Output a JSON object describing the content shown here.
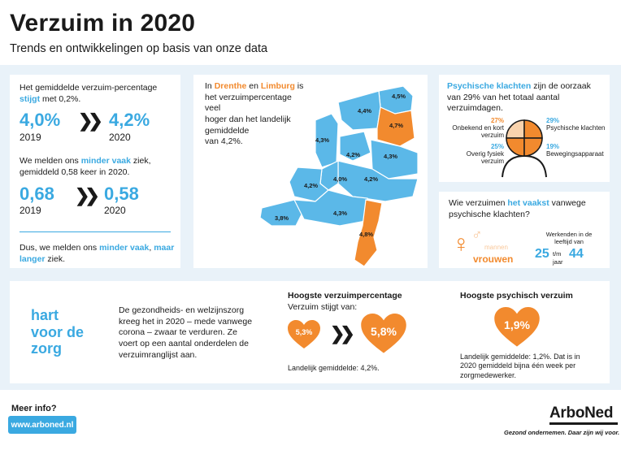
{
  "header": {
    "title": "Verzuim in 2020",
    "subtitle": "Trends en ontwikkelingen op basis van onze data"
  },
  "card_percentage": {
    "line1_a": "Het gemiddelde verzuim-percentage",
    "line2_b": "stijgt",
    "line2_c": " met 0,2%.",
    "from_value": "4,0%",
    "from_year": "2019",
    "arrow": "»",
    "to_value": "4,2%",
    "to_year": "2020",
    "freq_a": "We melden ons ",
    "freq_b": "minder vaak",
    "freq_c": " ziek,",
    "freq_d": "gemiddeld 0,58 keer in 2020.",
    "f_from_value": "0,68",
    "f_from_year": "2019",
    "f_to_value": "0,58",
    "f_to_year": "2020",
    "conclusion_a": "Dus, we melden ons ",
    "conclusion_b": "minder vaak",
    "conclusion_c": ", ",
    "conclusion_d": "maar",
    "conclusion_e": "langer",
    "conclusion_f": " ziek."
  },
  "card_map": {
    "text_a": "In ",
    "text_b": "Drenthe",
    "text_c": " en ",
    "text_d": "Limburg",
    "text_e": " is",
    "text_f": "het verzuimpercentage veel",
    "text_g": "hoger dan het landelijk",
    "text_h": "gemiddelde",
    "text_i": "van 4,2%.",
    "labels": [
      "4,5%",
      "4,4%",
      "4,7%",
      "4,3%",
      "4,2%",
      "4,3%",
      "4,0%",
      "4,2%",
      "4,2%",
      "4,3%",
      "3,8%",
      "4,8%"
    ],
    "blue": "#5bb8e8",
    "orange": "#f28a2e"
  },
  "card_psych": {
    "text_a": "Psychische klachten",
    "text_b": " zijn de oorzaak",
    "text_c": "van 29% van het totaal aantal",
    "text_d": "verzuimdagen.",
    "seg1_pct": "27%",
    "seg1_lbl_a": "Onbekend en kort",
    "seg1_lbl_b": "verzuim",
    "seg2_pct": "29%",
    "seg2_lbl": "Psychische klachten",
    "seg3_pct": "25%",
    "seg3_lbl": "Overig fysiek verzuim",
    "seg4_pct": "19%",
    "seg4_lbl": "Bewegingsapparaat"
  },
  "card_who": {
    "text_a": "Wie verzuimen ",
    "text_b": "het vaakst",
    "text_c": " vanwege",
    "text_d": "psychische klachten?",
    "male": "mannen",
    "female": "vrouwen",
    "age_a": "Werkenden in de",
    "age_b": "leeftijd van",
    "age_from": "25",
    "age_tm": "t/m",
    "age_jaar": "jaar",
    "age_to": "44"
  },
  "card_care": {
    "heading_1": "hart",
    "heading_2": "voor de",
    "heading_3": "zorg",
    "body_1": "De gezondheids- en welzijnszorg",
    "body_2": "kreeg het in 2020 – mede vanwege",
    "body_3": "corona – zwaar te verduren. Ze",
    "body_4": "voert op een aantal onderdelen de",
    "body_5": "verzuimranglijst aan.",
    "high_title": "Hoogste verzuimpercentage",
    "high_sub": "Verzuim stijgt van:",
    "high_from": "5,3%",
    "high_to": "5,8%",
    "high_note": "Landelijk gemiddelde: 4,2%.",
    "psy_title": "Hoogste psychisch verzuim",
    "psy_value": "1,9%",
    "psy_note_1": "Landelijk gemiddelde: 1,2%. Dat is in",
    "psy_note_2": "2020 gemiddeld bijna één week per",
    "psy_note_3": "zorgmedewerker."
  },
  "footer": {
    "more_info": "Meer info?",
    "url": "www.arboned.nl",
    "brand": "ArboNed",
    "tagline": "Gezond ondernemen. Daar zijn wij voor."
  }
}
